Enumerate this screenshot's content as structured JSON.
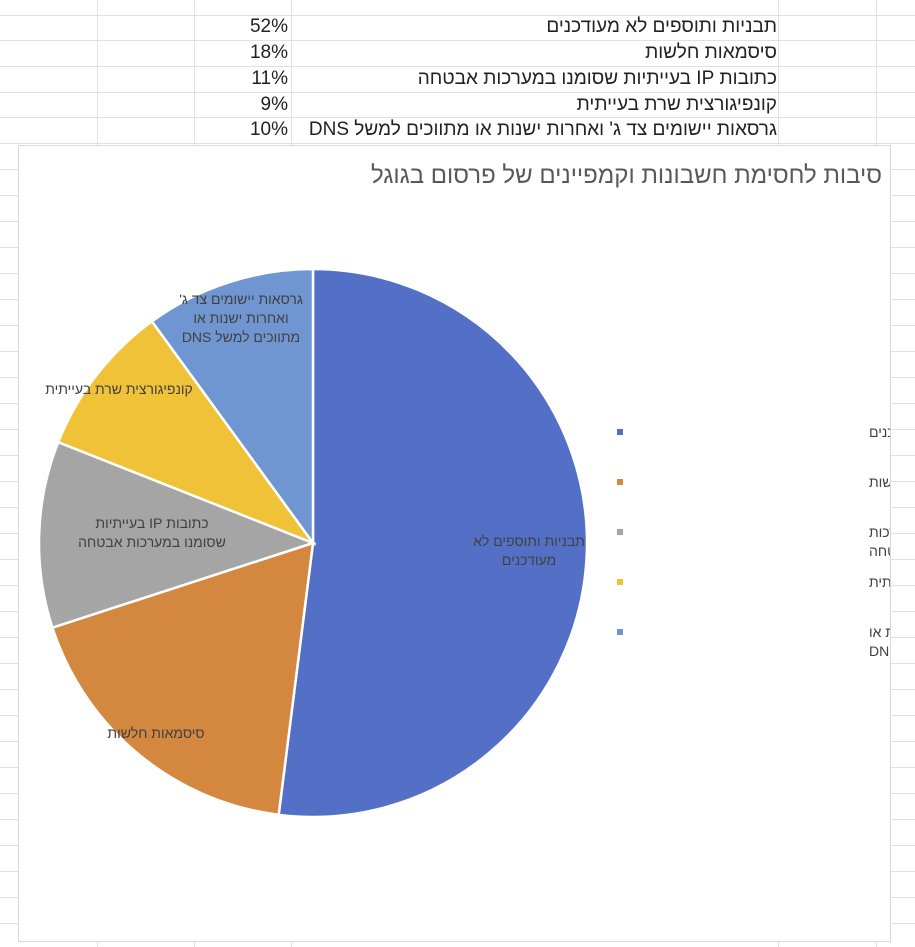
{
  "table": {
    "rows": [
      {
        "label": "תבניות ותוספים לא מעודכנים",
        "percent": "52%"
      },
      {
        "label": "סיסמאות חלשות",
        "percent": "18%"
      },
      {
        "label": "כתובות  IP  בעייתיות שסומנו במערכות אבטחה",
        "percent": "11%"
      },
      {
        "label": "קונפיגורצית שרת בעייתית",
        "percent": "9%"
      },
      {
        "label": "גרסאות יישומים צד ג' ואחרות ישנות או מתווכים למשל  DNS",
        "percent": "10%"
      }
    ]
  },
  "chart_data": {
    "type": "pie",
    "title": "סיבות לחסימת חשבונות וקמפיינים של פרסום בגוגל",
    "legend_position": "right",
    "slices": [
      {
        "label": "תבניות ותוספים לא מעודכנים",
        "value": 52,
        "color": "#5470C6"
      },
      {
        "label": "סיסמאות חלשות",
        "value": 18,
        "color": "#D4873F"
      },
      {
        "label": "כתובות  IP  בעייתיות שסומנו במערכות אבטחה",
        "value": 11,
        "color": "#A5A5A5"
      },
      {
        "label": "קונפיגורצית שרת בעייתית",
        "value": 9,
        "color": "#F0C237"
      },
      {
        "label": "גרסאות יישומים צד ג' ואחרות ישנות או מתווכים למשל  DNS",
        "value": 10,
        "color": "#7096D2"
      }
    ]
  }
}
